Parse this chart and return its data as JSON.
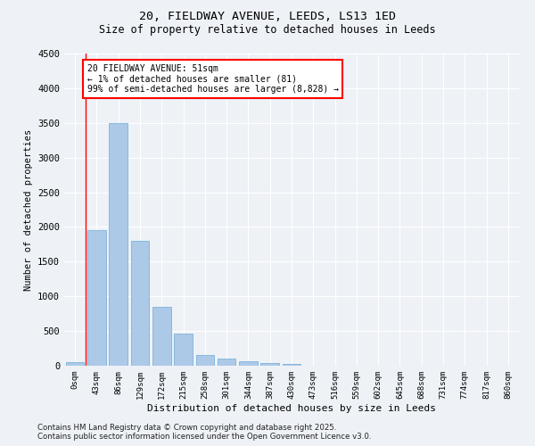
{
  "title_line1": "20, FIELDWAY AVENUE, LEEDS, LS13 1ED",
  "title_line2": "Size of property relative to detached houses in Leeds",
  "xlabel": "Distribution of detached houses by size in Leeds",
  "ylabel": "Number of detached properties",
  "categories": [
    "0sqm",
    "43sqm",
    "86sqm",
    "129sqm",
    "172sqm",
    "215sqm",
    "258sqm",
    "301sqm",
    "344sqm",
    "387sqm",
    "430sqm",
    "473sqm",
    "516sqm",
    "559sqm",
    "602sqm",
    "645sqm",
    "688sqm",
    "731sqm",
    "774sqm",
    "817sqm",
    "860sqm"
  ],
  "bar_values": [
    50,
    1950,
    3500,
    1800,
    850,
    460,
    155,
    100,
    60,
    40,
    20,
    5,
    2,
    1,
    0,
    0,
    0,
    0,
    0,
    0,
    0
  ],
  "bar_color": "#adc9e8",
  "bar_edge_color": "#6aaad4",
  "ylim": [
    0,
    4500
  ],
  "yticks": [
    0,
    500,
    1000,
    1500,
    2000,
    2500,
    3000,
    3500,
    4000,
    4500
  ],
  "annotation_line1": "20 FIELDWAY AVENUE: 51sqm",
  "annotation_line2": "← 1% of detached houses are smaller (81)",
  "annotation_line3": "99% of semi-detached houses are larger (8,828) →",
  "redline_x": 0.5,
  "bg_color": "#eef2f7",
  "grid_color": "#ffffff",
  "footer_line1": "Contains HM Land Registry data © Crown copyright and database right 2025.",
  "footer_line2": "Contains public sector information licensed under the Open Government Licence v3.0."
}
